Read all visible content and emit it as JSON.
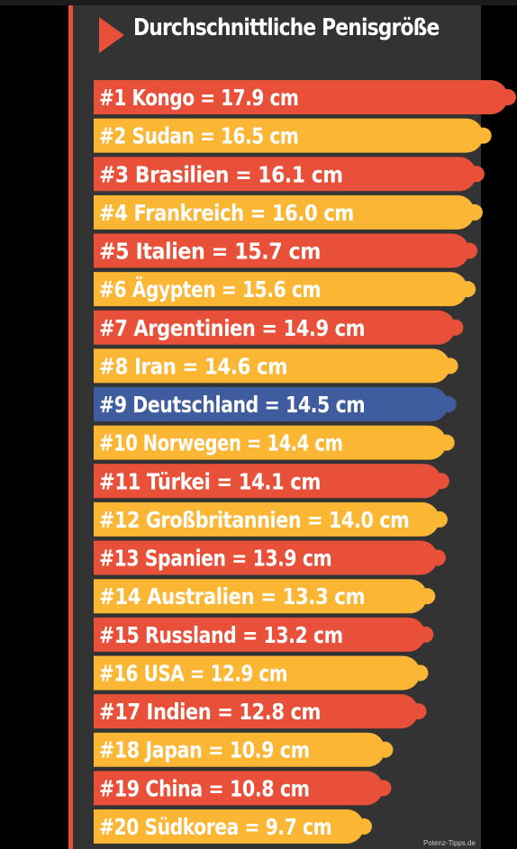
{
  "title": "Durchschnittliche Penisgröße",
  "source": "Potenz-Tipps.de",
  "colors": {
    "background": "#333333",
    "red": "#e8503a",
    "yellow": "#fbb634",
    "blue": "#3f5d9e",
    "text": "#ffffff"
  },
  "chart_data": {
    "type": "bar",
    "orientation": "horizontal",
    "title": "Durchschnittliche Penisgröße",
    "unit": "cm",
    "categories": [
      "Kongo",
      "Sudan",
      "Brasilien",
      "Frankreich",
      "Italien",
      "Ägypten",
      "Argentinien",
      "Iran",
      "Deutschland",
      "Norwegen",
      "Türkei",
      "Großbritannien",
      "Spanien",
      "Australien",
      "Russland",
      "USA",
      "Indien",
      "Japan",
      "China",
      "Südkorea"
    ],
    "values": [
      17.9,
      16.5,
      16.1,
      16.0,
      15.7,
      15.6,
      14.9,
      14.6,
      14.5,
      14.4,
      14.1,
      14.0,
      13.9,
      13.3,
      13.2,
      12.9,
      12.8,
      10.9,
      10.8,
      9.7
    ],
    "labels": [
      "#1 Kongo = 17.9 cm",
      "#2 Sudan = 16.5 cm",
      "#3 Brasilien = 16.1 cm",
      "#4 Frankreich = 16.0 cm",
      "#5 Italien = 15.7 cm",
      "#6 Ägypten = 15.6 cm",
      "#7 Argentinien = 14.9 cm",
      "#8 Iran = 14.6 cm",
      "#9 Deutschland = 14.5 cm",
      "#10 Norwegen = 14.4 cm",
      "#11 Türkei = 14.1 cm",
      "#12 Großbritannien = 14.0 cm",
      "#13 Spanien = 13.9 cm",
      "#14 Australien = 13.3 cm",
      "#15 Russland = 13.2 cm",
      "#16 USA = 12.9 cm",
      "#17 Indien = 12.8 cm",
      "#18 Japan = 10.9 cm",
      "#19 China = 10.8 cm",
      "#20 Südkorea = 9.7 cm"
    ],
    "bar_colors": [
      "red",
      "yellow",
      "red",
      "yellow",
      "red",
      "yellow",
      "red",
      "yellow",
      "blue",
      "yellow",
      "red",
      "yellow",
      "red",
      "yellow",
      "red",
      "yellow",
      "red",
      "yellow",
      "red",
      "yellow"
    ],
    "grid": false,
    "legend": "none"
  }
}
